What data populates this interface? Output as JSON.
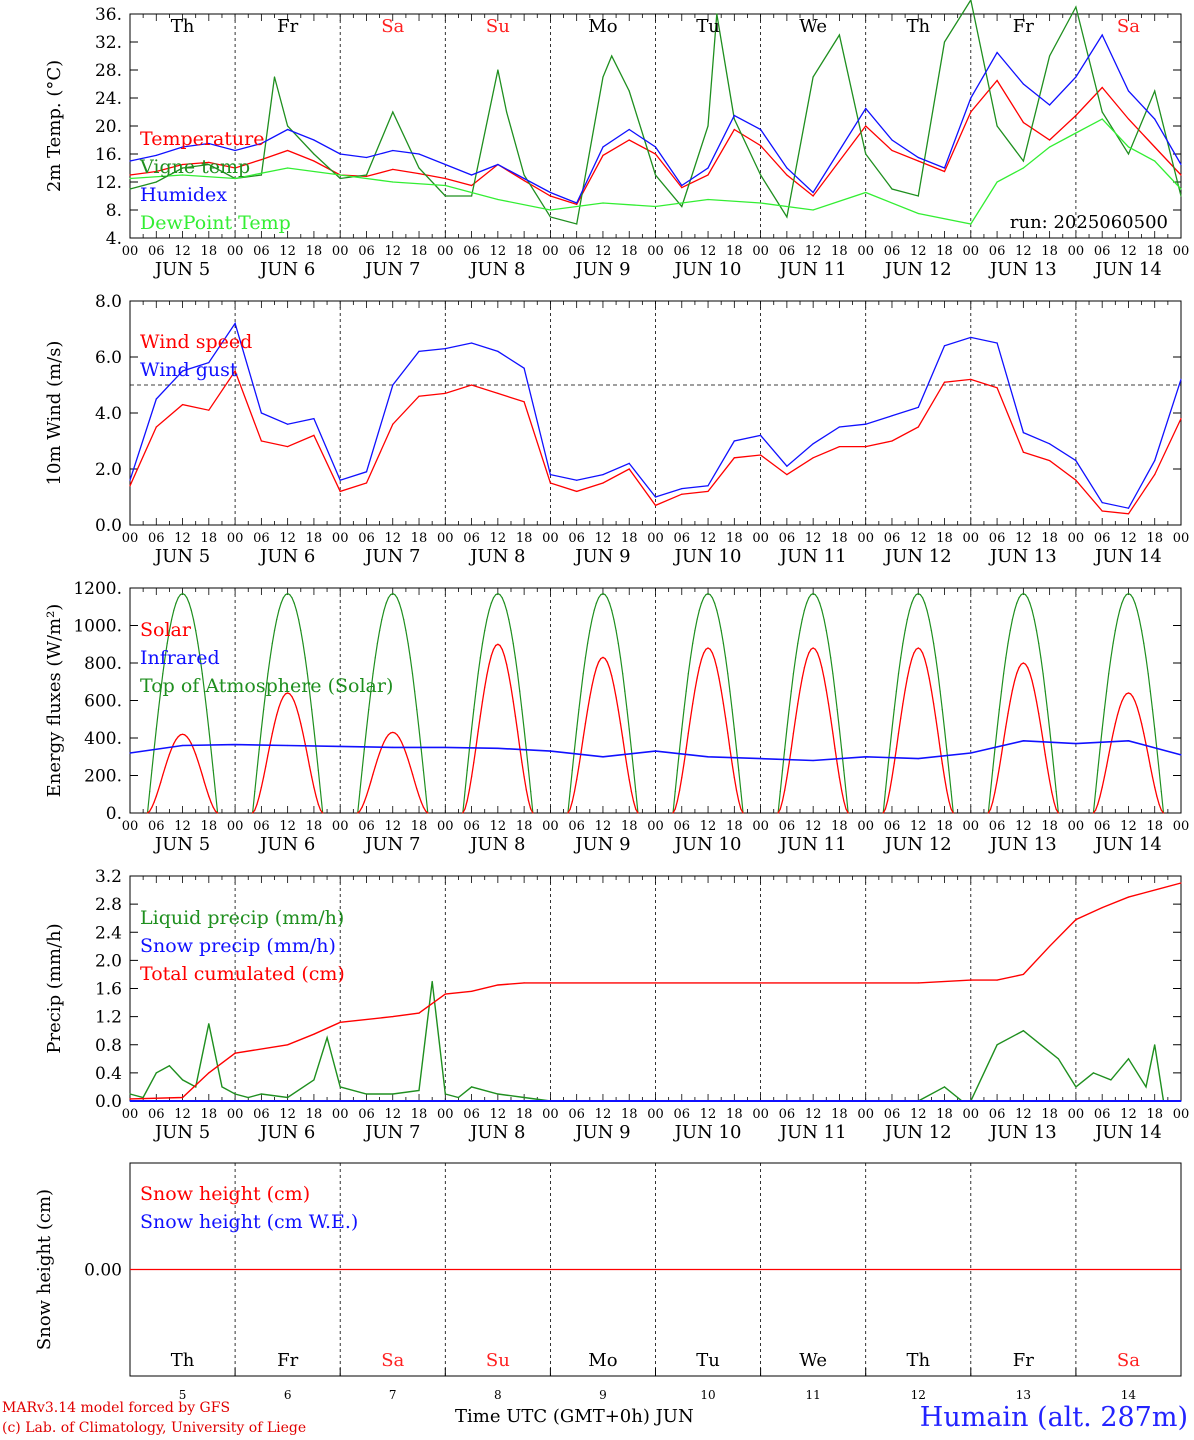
{
  "chart_data": [
    {
      "type": "line",
      "ylabel": "2m Temp. (°C)",
      "ylim": [
        4,
        36
      ],
      "yticks": [
        "36.",
        "32.",
        "28.",
        "24.",
        "20.",
        "16.",
        "12.",
        "8.",
        "4."
      ],
      "run_label": "run: 2025060500",
      "x_unit": "hours since JUN 5 00 UTC",
      "series": [
        {
          "name": "Temperature",
          "color": "#ff0000",
          "x": [
            0,
            6,
            12,
            18,
            24,
            30,
            36,
            42,
            48,
            54,
            60,
            66,
            72,
            78,
            84,
            90,
            96,
            102,
            108,
            114,
            120,
            126,
            132,
            138,
            144,
            150,
            156,
            162,
            168,
            174,
            180,
            186,
            192,
            198,
            204,
            210,
            216,
            222,
            228,
            234,
            240
          ],
          "values": [
            13,
            13.5,
            14.5,
            14.8,
            14,
            15.2,
            16.5,
            15,
            13,
            12.8,
            13.8,
            13.2,
            12.5,
            11.5,
            14.5,
            12.2,
            10,
            8.8,
            15.8,
            18,
            16,
            11.2,
            13,
            19.5,
            17.2,
            13,
            10,
            15,
            20,
            16.5,
            15,
            13.5,
            22,
            26.5,
            20.5,
            18,
            21.5,
            25.5,
            21,
            17,
            13
          ]
        },
        {
          "name": "Vigne temp",
          "color": "#1f8f1f",
          "x": [
            0,
            6,
            12,
            18,
            24,
            30,
            33,
            36,
            42,
            48,
            54,
            60,
            66,
            72,
            78,
            84,
            86,
            90,
            96,
            102,
            108,
            110,
            114,
            120,
            126,
            132,
            134,
            138,
            144,
            150,
            156,
            162,
            168,
            174,
            180,
            186,
            192,
            198,
            204,
            210,
            216,
            222,
            228,
            234,
            240
          ],
          "values": [
            11,
            12,
            14,
            14.5,
            12.5,
            13,
            27,
            20,
            16,
            12.5,
            13,
            22,
            14,
            10,
            10,
            28,
            22,
            13,
            7,
            6,
            27,
            30,
            25,
            13,
            8.5,
            20,
            36,
            21,
            13,
            7,
            27,
            33,
            16,
            11,
            10,
            32,
            38,
            20,
            15,
            30,
            37,
            22,
            16,
            25,
            10
          ]
        },
        {
          "name": "Humidex",
          "color": "#1010ff",
          "x": [
            0,
            6,
            12,
            18,
            24,
            30,
            36,
            42,
            48,
            54,
            60,
            66,
            72,
            78,
            84,
            90,
            96,
            102,
            108,
            114,
            120,
            126,
            132,
            138,
            144,
            150,
            156,
            162,
            168,
            174,
            180,
            186,
            192,
            198,
            204,
            210,
            216,
            222,
            228,
            234,
            240
          ],
          "values": [
            15,
            15.8,
            17,
            17.5,
            16.5,
            17.5,
            19.5,
            18,
            16,
            15.5,
            16.5,
            16,
            14.5,
            13,
            14.5,
            12.5,
            10.5,
            9,
            17,
            19.5,
            17,
            11.5,
            14,
            21.5,
            19.5,
            14,
            10.5,
            16.5,
            22.5,
            18,
            15.5,
            14,
            24,
            30.5,
            26,
            23,
            27,
            33,
            25,
            21,
            14.5
          ]
        },
        {
          "name": "DewPoint Temp",
          "color": "#33ee33",
          "x": [
            0,
            12,
            24,
            36,
            48,
            60,
            72,
            84,
            96,
            108,
            120,
            132,
            144,
            156,
            168,
            180,
            192,
            198,
            204,
            210,
            216,
            222,
            228,
            234,
            240
          ],
          "values": [
            12.5,
            13,
            12.5,
            14,
            13,
            12,
            11.5,
            9.5,
            8,
            9,
            8.5,
            9.5,
            9,
            8,
            10.5,
            7.5,
            6,
            12,
            14,
            17,
            19,
            21,
            17,
            15,
            11
          ]
        }
      ]
    },
    {
      "type": "line",
      "ylabel": "10m Wind (m/s)",
      "ylim": [
        0,
        8
      ],
      "yticks": [
        "8.0",
        "6.0",
        "4.0",
        "2.0",
        "0.0"
      ],
      "reference_line": 5,
      "x_unit": "hours since JUN 5 00 UTC",
      "series": [
        {
          "name": "Wind speed",
          "color": "#ff0000",
          "x": [
            0,
            6,
            12,
            18,
            24,
            30,
            36,
            42,
            48,
            54,
            60,
            66,
            72,
            78,
            84,
            90,
            96,
            102,
            108,
            114,
            120,
            126,
            132,
            138,
            144,
            150,
            156,
            162,
            168,
            174,
            180,
            186,
            192,
            198,
            204,
            210,
            216,
            222,
            228,
            234,
            240
          ],
          "values": [
            1.4,
            3.5,
            4.3,
            4.1,
            5.5,
            3,
            2.8,
            3.2,
            1.2,
            1.5,
            3.6,
            4.6,
            4.7,
            5,
            4.7,
            4.4,
            1.5,
            1.2,
            1.5,
            2,
            0.7,
            1.1,
            1.2,
            2.4,
            2.5,
            1.8,
            2.4,
            2.8,
            2.8,
            3,
            3.5,
            5.1,
            5.2,
            4.9,
            2.6,
            2.3,
            1.6,
            0.5,
            0.4,
            1.8,
            3.8
          ]
        },
        {
          "name": "Wind gust",
          "color": "#1010ff",
          "x": [
            0,
            6,
            12,
            18,
            24,
            30,
            36,
            42,
            48,
            54,
            60,
            66,
            72,
            78,
            84,
            90,
            96,
            102,
            108,
            114,
            120,
            126,
            132,
            138,
            144,
            150,
            156,
            162,
            168,
            174,
            180,
            186,
            192,
            198,
            204,
            210,
            216,
            222,
            228,
            234,
            240
          ],
          "values": [
            1.6,
            4.5,
            5.5,
            5.8,
            7.2,
            4,
            3.6,
            3.8,
            1.6,
            1.9,
            5,
            6.2,
            6.3,
            6.5,
            6.2,
            5.6,
            1.8,
            1.6,
            1.8,
            2.2,
            1,
            1.3,
            1.4,
            3,
            3.2,
            2.1,
            2.9,
            3.5,
            3.6,
            3.9,
            4.2,
            6.4,
            6.7,
            6.5,
            3.3,
            2.9,
            2.3,
            0.8,
            0.6,
            2.3,
            5.2
          ]
        }
      ]
    },
    {
      "type": "line",
      "ylabel": "Energy fluxes (W/m²)",
      "ylim": [
        0,
        1200
      ],
      "yticks": [
        "1200.",
        "1000.",
        "800.",
        "600.",
        "400.",
        "200.",
        "0."
      ],
      "x_unit": "hours since JUN 5 00 UTC",
      "series": [
        {
          "name": "Solar",
          "color": "#ff0000",
          "peaks": [
            420,
            640,
            430,
            900,
            830,
            880,
            880,
            880,
            800,
            640
          ]
        },
        {
          "name": "Infrared",
          "color": "#1010ff",
          "x": [
            0,
            12,
            24,
            36,
            48,
            60,
            72,
            84,
            96,
            108,
            120,
            132,
            144,
            156,
            168,
            180,
            192,
            204,
            216,
            228,
            240
          ],
          "values": [
            320,
            360,
            365,
            360,
            355,
            350,
            350,
            345,
            330,
            300,
            330,
            300,
            290,
            280,
            300,
            290,
            320,
            385,
            370,
            385,
            310
          ]
        },
        {
          "name": "Top of Atmosphere (Solar)",
          "color": "#1f8f1f",
          "peak": 1170
        }
      ]
    },
    {
      "type": "line",
      "ylabel": "Precip (mm/h)",
      "ylim": [
        0,
        3.2
      ],
      "yticks": [
        "3.2",
        "2.8",
        "2.4",
        "2.0",
        "1.6",
        "1.2",
        "0.8",
        "0.4",
        "0.0"
      ],
      "x_unit": "hours since JUN 5 00 UTC",
      "series": [
        {
          "name": "Liquid precip (mm/h)",
          "color": "#1f8f1f",
          "x": [
            0,
            3,
            6,
            9,
            12,
            15,
            18,
            21,
            24,
            27,
            30,
            36,
            42,
            45,
            48,
            54,
            60,
            66,
            69,
            72,
            75,
            78,
            84,
            90,
            96,
            120,
            150,
            180,
            186,
            190,
            192,
            198,
            204,
            208,
            212,
            216,
            220,
            224,
            228,
            232,
            234,
            236,
            240
          ],
          "values": [
            0.1,
            0.05,
            0.4,
            0.5,
            0.3,
            0.2,
            1.1,
            0.2,
            0.1,
            0.05,
            0.1,
            0.05,
            0.3,
            0.9,
            0.2,
            0.1,
            0.1,
            0.15,
            1.7,
            0.1,
            0.05,
            0.2,
            0.1,
            0.05,
            0,
            0,
            0,
            0,
            0.2,
            0,
            0,
            0.8,
            1,
            0.8,
            0.6,
            0.2,
            0.4,
            0.3,
            0.6,
            0.2,
            0.8,
            0,
            0
          ]
        },
        {
          "name": "Snow precip (mm/h)",
          "color": "#1010ff",
          "x": [
            0,
            240
          ],
          "values": [
            0,
            0
          ]
        },
        {
          "name": "Total cumulated (cm)",
          "color": "#ff0000",
          "x": [
            0,
            12,
            18,
            24,
            36,
            42,
            48,
            60,
            66,
            72,
            78,
            84,
            90,
            96,
            180,
            192,
            198,
            204,
            210,
            216,
            222,
            228,
            240
          ],
          "values": [
            0.03,
            0.05,
            0.4,
            0.68,
            0.8,
            0.95,
            1.12,
            1.2,
            1.25,
            1.52,
            1.56,
            1.65,
            1.68,
            1.68,
            1.68,
            1.72,
            1.72,
            1.8,
            2.2,
            2.58,
            2.75,
            2.9,
            3.1
          ]
        }
      ]
    },
    {
      "type": "line",
      "ylabel": "Snow height (cm)",
      "yticks": [
        "0.00"
      ],
      "xlabel": "Time UTC (GMT+0h) JUN",
      "series": [
        {
          "name": "Snow height (cm)",
          "color": "#ff0000",
          "values": [
            0,
            0
          ]
        },
        {
          "name": "Snow height (cm W.E.)",
          "color": "#1010ff",
          "values": [
            0,
            0
          ]
        }
      ]
    }
  ],
  "days": [
    {
      "abbr": "Th",
      "date": "JUN  5",
      "num": "5",
      "color": "#000000"
    },
    {
      "abbr": "Fr",
      "date": "JUN  6",
      "num": "6",
      "color": "#000000"
    },
    {
      "abbr": "Sa",
      "date": "JUN  7",
      "num": "7",
      "color": "#ff2020"
    },
    {
      "abbr": "Su",
      "date": "JUN  8",
      "num": "8",
      "color": "#ff2020"
    },
    {
      "abbr": "Mo",
      "date": "JUN  9",
      "num": "9",
      "color": "#000000"
    },
    {
      "abbr": "Tu",
      "date": "JUN 10",
      "num": "10",
      "color": "#000000"
    },
    {
      "abbr": "We",
      "date": "JUN 11",
      "num": "11",
      "color": "#000000"
    },
    {
      "abbr": "Th",
      "date": "JUN 12",
      "num": "12",
      "color": "#000000"
    },
    {
      "abbr": "Fr",
      "date": "JUN 13",
      "num": "13",
      "color": "#000000"
    },
    {
      "abbr": "Sa",
      "date": "JUN 14",
      "num": "14",
      "color": "#ff2020"
    }
  ],
  "hour_ticks": [
    "00",
    "06",
    "12",
    "18"
  ],
  "footer": {
    "credit_line1": "MARv3.14 model forced by GFS",
    "credit_line2": "(c) Lab. of Climatology, University of Liege",
    "xtitle": "Time UTC (GMT+0h) JUN",
    "station": "Humain (alt. 287m)"
  }
}
